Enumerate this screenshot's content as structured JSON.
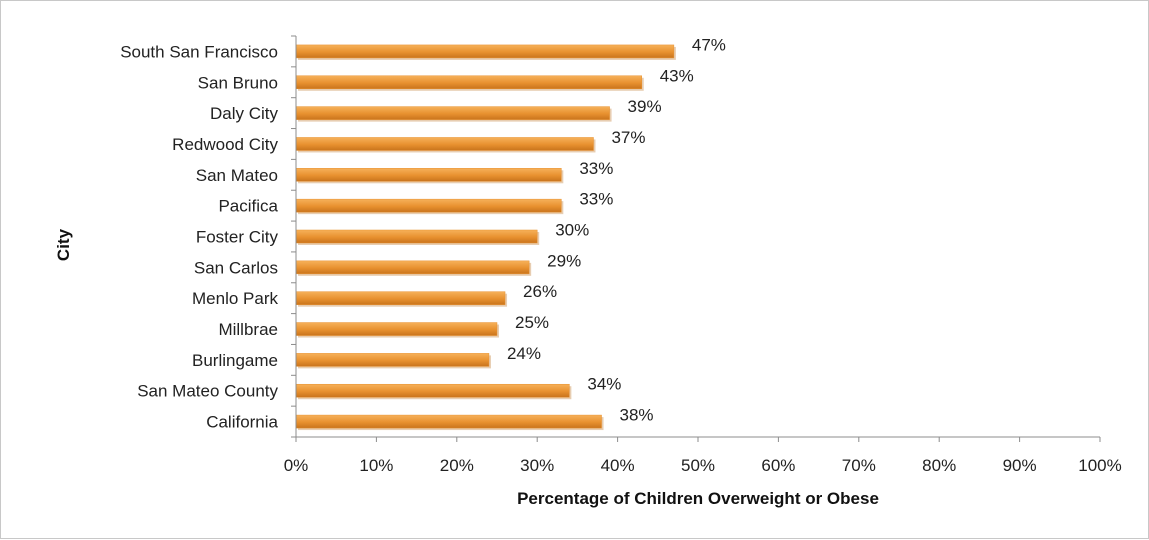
{
  "chart_data": {
    "type": "bar",
    "orientation": "horizontal",
    "categories": [
      "South San Francisco",
      "San Bruno",
      "Daly City",
      "Redwood City",
      "San Mateo",
      "Pacifica",
      "Foster City",
      "San Carlos",
      "Menlo Park",
      "Millbrae",
      "Burlingame",
      "San Mateo County",
      "California"
    ],
    "values": [
      47,
      43,
      39,
      37,
      33,
      33,
      30,
      29,
      26,
      25,
      24,
      34,
      38
    ],
    "data_labels": [
      "47%",
      "43%",
      "39%",
      "37%",
      "33%",
      "33%",
      "30%",
      "29%",
      "26%",
      "25%",
      "24%",
      "34%",
      "38%"
    ],
    "title": "",
    "xlabel": "Percentage of Children Overweight or Obese",
    "ylabel": "City",
    "xlim": [
      0,
      100
    ],
    "x_ticks": [
      "0%",
      "10%",
      "20%",
      "30%",
      "40%",
      "50%",
      "60%",
      "70%",
      "80%",
      "90%",
      "100%"
    ],
    "grid": false,
    "legend": "none",
    "bar_color": "#e8912f",
    "bar_shadow_color": "#b96f1f"
  }
}
